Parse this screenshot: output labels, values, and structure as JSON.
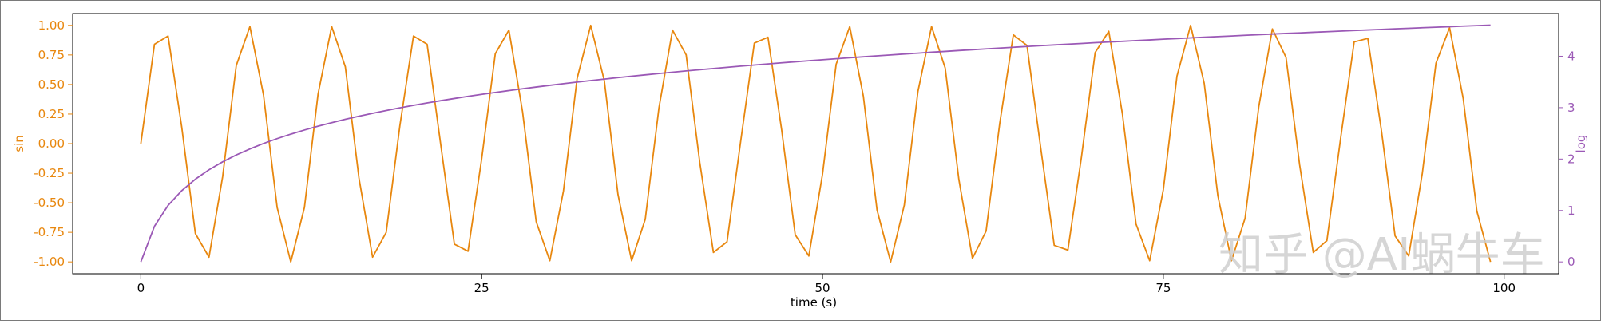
{
  "chart_data": {
    "type": "line",
    "title": "",
    "xlabel": "time (s)",
    "ylabel_left": "sin",
    "ylabel_right": "log",
    "xlim": [
      -5,
      104
    ],
    "ylim_left": [
      -1.1,
      1.1
    ],
    "ylim_right": [
      -0.23,
      4.83
    ],
    "grid": false,
    "x_ticks": [
      0,
      25,
      50,
      75,
      100
    ],
    "left_ticks": [
      "-1.00",
      "-0.75",
      "-0.50",
      "-0.25",
      "0.00",
      "0.25",
      "0.50",
      "0.75",
      "1.00"
    ],
    "right_ticks": [
      "0",
      "1",
      "2",
      "3",
      "4"
    ],
    "x": [
      0,
      1,
      2,
      3,
      4,
      5,
      6,
      7,
      8,
      9,
      10,
      11,
      12,
      13,
      14,
      15,
      16,
      17,
      18,
      19,
      20,
      21,
      22,
      23,
      24,
      25,
      26,
      27,
      28,
      29,
      30,
      31,
      32,
      33,
      34,
      35,
      36,
      37,
      38,
      39,
      40,
      41,
      42,
      43,
      44,
      45,
      46,
      47,
      48,
      49,
      50,
      51,
      52,
      53,
      54,
      55,
      56,
      57,
      58,
      59,
      60,
      61,
      62,
      63,
      64,
      65,
      66,
      67,
      68,
      69,
      70,
      71,
      72,
      73,
      74,
      75,
      76,
      77,
      78,
      79,
      80,
      81,
      82,
      83,
      84,
      85,
      86,
      87,
      88,
      89,
      90,
      91,
      92,
      93,
      94,
      95,
      96,
      97,
      98,
      99
    ],
    "series": [
      {
        "name": "sin",
        "axis": "left",
        "color": "#e8870e",
        "values": [
          0.0,
          0.84,
          0.91,
          0.14,
          -0.76,
          -0.96,
          -0.28,
          0.66,
          0.99,
          0.41,
          -0.54,
          -1.0,
          -0.54,
          0.42,
          0.99,
          0.65,
          -0.29,
          -0.96,
          -0.75,
          0.15,
          0.91,
          0.84,
          -0.01,
          -0.85,
          -0.91,
          -0.13,
          0.76,
          0.96,
          0.27,
          -0.66,
          -0.99,
          -0.4,
          0.55,
          1.0,
          0.53,
          -0.43,
          -0.99,
          -0.64,
          0.3,
          0.96,
          0.75,
          -0.16,
          -0.92,
          -0.83,
          0.02,
          0.85,
          0.9,
          0.12,
          -0.77,
          -0.95,
          -0.26,
          0.67,
          0.99,
          0.4,
          -0.56,
          -1.0,
          -0.52,
          0.44,
          0.99,
          0.64,
          -0.3,
          -0.97,
          -0.74,
          0.17,
          0.92,
          0.83,
          -0.03,
          -0.86,
          -0.9,
          -0.11,
          0.77,
          0.95,
          0.25,
          -0.68,
          -0.99,
          -0.39,
          0.57,
          1.0,
          0.51,
          -0.44,
          -0.99,
          -0.63,
          0.31,
          0.97,
          0.73,
          -0.18,
          -0.92,
          -0.82,
          0.04,
          0.86,
          0.89,
          0.11,
          -0.78,
          -0.95,
          -0.25,
          0.68,
          0.98,
          0.38,
          -0.57,
          -1.0
        ]
      },
      {
        "name": "log",
        "axis": "right",
        "color": "#9b59b6",
        "values": [
          0.0,
          0.693,
          1.099,
          1.386,
          1.609,
          1.792,
          1.946,
          2.079,
          2.197,
          2.303,
          2.398,
          2.485,
          2.565,
          2.639,
          2.708,
          2.773,
          2.833,
          2.89,
          2.944,
          2.996,
          3.045,
          3.091,
          3.135,
          3.178,
          3.219,
          3.258,
          3.296,
          3.332,
          3.367,
          3.401,
          3.434,
          3.466,
          3.497,
          3.526,
          3.555,
          3.584,
          3.611,
          3.638,
          3.664,
          3.689,
          3.714,
          3.738,
          3.761,
          3.784,
          3.807,
          3.829,
          3.85,
          3.871,
          3.892,
          3.912,
          3.932,
          3.951,
          3.97,
          3.989,
          4.007,
          4.025,
          4.043,
          4.06,
          4.078,
          4.094,
          4.111,
          4.127,
          4.143,
          4.159,
          4.174,
          4.19,
          4.205,
          4.22,
          4.234,
          4.248,
          4.263,
          4.277,
          4.29,
          4.304,
          4.317,
          4.331,
          4.344,
          4.357,
          4.369,
          4.382,
          4.394,
          4.407,
          4.419,
          4.431,
          4.443,
          4.454,
          4.466,
          4.477,
          4.489,
          4.5,
          4.511,
          4.522,
          4.533,
          4.543,
          4.554,
          4.564,
          4.575,
          4.585,
          4.595,
          4.605
        ]
      }
    ],
    "colors": {
      "left_axis": "#e8870e",
      "right_axis": "#9b59b6",
      "watermark": "#cfcfcf"
    }
  },
  "watermark": "知乎 @AI蜗牛车"
}
